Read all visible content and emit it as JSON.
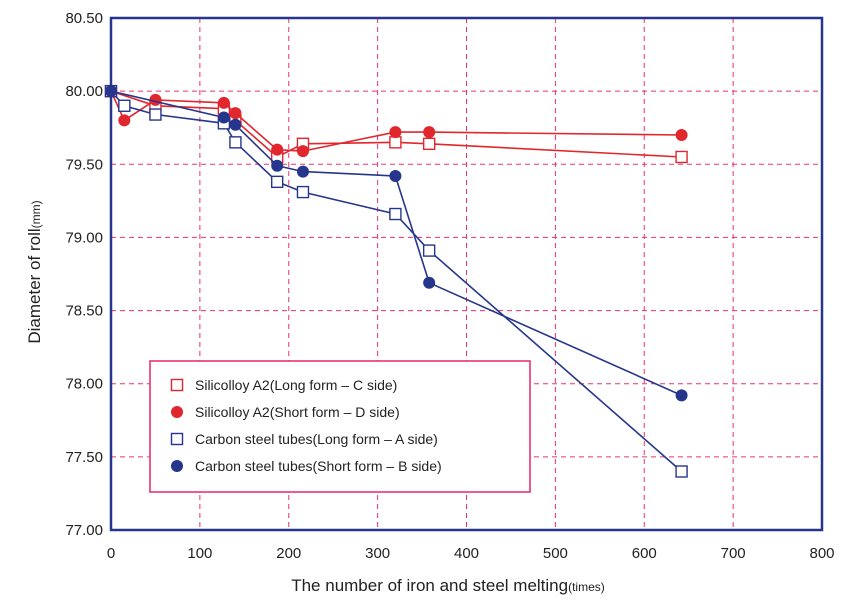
{
  "chart_data": {
    "type": "line",
    "xlabel": "The number of iron and steel melting",
    "xlabel_unit": "(times)",
    "ylabel": "Diameter of roll",
    "ylabel_unit": "(mm)",
    "xlim": [
      0,
      800
    ],
    "ylim": [
      77.0,
      80.5
    ],
    "x_ticks": [
      0,
      100,
      200,
      300,
      400,
      500,
      600,
      700,
      800
    ],
    "y_ticks": [
      77.0,
      77.5,
      78.0,
      78.5,
      79.0,
      79.5,
      80.0,
      80.5
    ],
    "y_tick_labels": [
      "77.00",
      "77.50",
      "78.00",
      "78.50",
      "79.00",
      "79.50",
      "80.00",
      "80.50"
    ],
    "grid": true,
    "legend_position": "lower-left",
    "series": [
      {
        "name": "Silicolloy A2(Long form – C side)",
        "color": "#e2262d",
        "marker": "open-square",
        "x": [
          0,
          50,
          127,
          140,
          187,
          216,
          320,
          358,
          642
        ],
        "y": [
          80.0,
          79.9,
          79.88,
          79.8,
          79.55,
          79.64,
          79.65,
          79.64,
          79.55
        ]
      },
      {
        "name": "Silicolloy A2(Short form – D side)",
        "color": "#e2262d",
        "marker": "filled-circle",
        "x": [
          0,
          15,
          50,
          127,
          140,
          187,
          216,
          320,
          358,
          642
        ],
        "y": [
          80.0,
          79.8,
          79.94,
          79.92,
          79.85,
          79.6,
          79.59,
          79.72,
          79.72,
          79.7
        ]
      },
      {
        "name": "Carbon steel tubes(Long form – A side)",
        "color": "#26368c",
        "marker": "open-square",
        "x": [
          0,
          15,
          50,
          127,
          140,
          187,
          216,
          320,
          358,
          642
        ],
        "y": [
          80.0,
          79.9,
          79.84,
          79.78,
          79.65,
          79.38,
          79.31,
          79.16,
          78.91,
          77.4
        ]
      },
      {
        "name": "Carbon steel tubes(Short form – B side)",
        "color": "#26368c",
        "marker": "filled-circle",
        "x": [
          0,
          127,
          140,
          187,
          216,
          320,
          358,
          642
        ],
        "y": [
          80.0,
          79.82,
          79.77,
          79.49,
          79.45,
          79.42,
          78.69,
          77.92
        ]
      }
    ],
    "colors": {
      "frame": "#26368c",
      "grid": "#e8336f",
      "legend_border": "#e8336f"
    }
  }
}
